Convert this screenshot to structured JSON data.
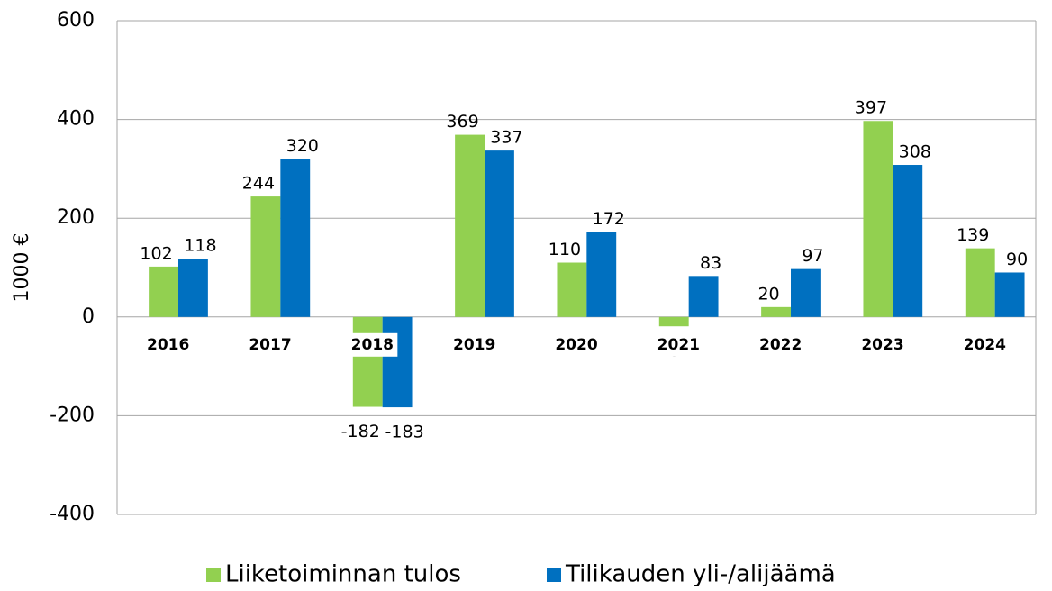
{
  "chart_data": {
    "type": "bar",
    "y_label": "1000 €",
    "categories": [
      "2016",
      "2017",
      "2018",
      "2019",
      "2020",
      "2021",
      "2022",
      "2023",
      "2024"
    ],
    "series": [
      {
        "name": "Liiketoiminnan tulos",
        "color": "#92d050",
        "values": [
          102,
          244,
          -182,
          369,
          110,
          -19,
          20,
          397,
          139
        ]
      },
      {
        "name": "Tilikauden yli-/alijäämä",
        "color": "#0070c0",
        "values": [
          118,
          320,
          -183,
          337,
          172,
          83,
          97,
          308,
          90
        ]
      }
    ],
    "ylim": [
      -400,
      600
    ],
    "yticks": [
      -400,
      -200,
      0,
      200,
      400,
      600
    ],
    "grid": true
  }
}
